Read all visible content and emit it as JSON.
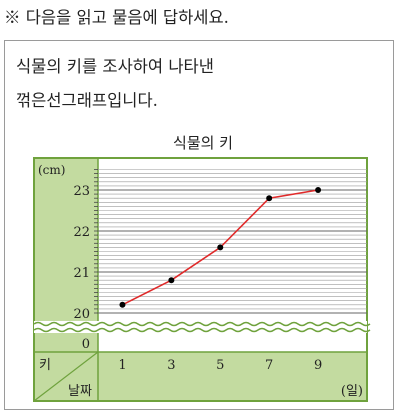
{
  "instruction": "※ 다음을 읽고 물음에 답하세요.",
  "description": [
    "식물의 키를 조사하여 나타낸",
    "꺾은선그래프입니다."
  ],
  "colors": {
    "frame": "#6fa23d",
    "panel": "#c3dba0",
    "grid": "#9a9a9a",
    "line": "#e02a2a",
    "point": "#000000"
  },
  "chart_data": {
    "type": "line",
    "title": "식물의 키",
    "y_unit_label": "(cm)",
    "x_unit_label": "(일)",
    "corner_labels": {
      "y": "키",
      "x": "날짜"
    },
    "x": [
      1,
      3,
      5,
      7,
      9
    ],
    "y": [
      20.2,
      20.8,
      21.6,
      22.8,
      23.0
    ],
    "x_ticks": [
      "1",
      "3",
      "5",
      "7",
      "9"
    ],
    "y_ticks": [
      "20",
      "21",
      "22",
      "23"
    ],
    "y_zero_tick": "0",
    "ylim": [
      20,
      23.5
    ],
    "xlim": [
      0,
      11
    ],
    "axis_break": true,
    "grid": true,
    "y_minor_step": 0.1
  }
}
